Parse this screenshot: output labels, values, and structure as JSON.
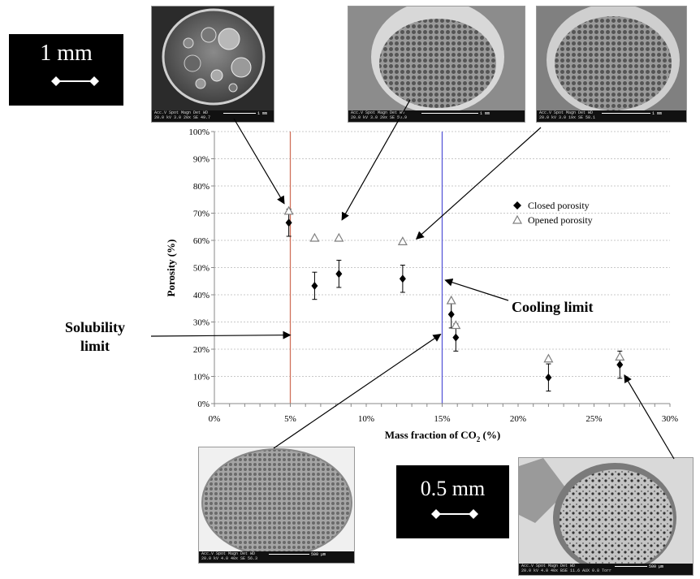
{
  "scale_bars": {
    "large": "1 mm",
    "small": "0.5 mm"
  },
  "micrographs": [
    {
      "id": "m1",
      "footer": [
        "Acc.V  Spot Magn   Det  WD",
        "20.0 kV 3.0  20x    SE  49.7"
      ],
      "scale": "1 mm"
    },
    {
      "id": "m2",
      "footer": [
        "Acc.V  Spot Magn   Det  WD",
        "20.0 kV 3.0  20x    SE  50.9"
      ],
      "scale": "1 mm"
    },
    {
      "id": "m3",
      "footer": [
        "Acc.V  Spot Magn   Det  WD",
        "20.0 kV 3.0  19x    SE  58.1"
      ],
      "scale": "1 mm"
    },
    {
      "id": "m4",
      "footer": [
        "Acc.V  Spot Magn   Det  WD",
        "20.0 kV 4.0  40x    SE  56.3"
      ],
      "scale": "500 µm"
    },
    {
      "id": "m5",
      "footer": [
        "Acc.V  Spot Magn   Det  WD",
        "20.0 kV 4.0  40x    BSE 11.6  AUX 0.8 Torr"
      ],
      "scale": "500 µm"
    }
  ],
  "annotations": {
    "solubility": [
      "Solubility",
      "limit"
    ],
    "cooling": "Cooling limit"
  },
  "chart_data": {
    "type": "scatter",
    "xlabel_main": "Mass fraction of CO",
    "xlabel_sub": "2",
    "xlabel_end": " (%)",
    "ylabel": "Porosity (%)",
    "xlim": [
      0,
      30
    ],
    "ylim": [
      0,
      100
    ],
    "x_ticks": [
      0,
      5,
      10,
      15,
      20,
      25,
      30
    ],
    "x_tick_labels": [
      "0%",
      "5%",
      "10%",
      "15%",
      "20%",
      "25%",
      "30%"
    ],
    "y_ticks": [
      0,
      10,
      20,
      30,
      40,
      50,
      60,
      70,
      80,
      90,
      100
    ],
    "y_tick_labels": [
      "0%",
      "10%",
      "20%",
      "30%",
      "40%",
      "50%",
      "60%",
      "70%",
      "80%",
      "90%",
      "100%"
    ],
    "legend_position": "right",
    "vertical_lines": [
      {
        "x": 5,
        "color": "#d0705a"
      },
      {
        "x": 15,
        "color": "#5a5ad8"
      }
    ],
    "series": [
      {
        "name": "Closed porosity",
        "marker": "diamond",
        "color": "#000000",
        "points": [
          {
            "x": 4.9,
            "y": 66.5,
            "err": 5
          },
          {
            "x": 6.6,
            "y": 43.3,
            "err": 5
          },
          {
            "x": 8.2,
            "y": 47.7,
            "err": 5
          },
          {
            "x": 12.4,
            "y": 45.9,
            "err": 5
          },
          {
            "x": 15.6,
            "y": 32.8,
            "err": 5
          },
          {
            "x": 15.9,
            "y": 24.3,
            "err": 5
          },
          {
            "x": 22.0,
            "y": 9.6,
            "err": 5
          },
          {
            "x": 26.7,
            "y": 14.3,
            "err": 5
          }
        ]
      },
      {
        "name": "Opened porosity",
        "marker": "triangle",
        "color": "#7f7f7f",
        "points": [
          {
            "x": 4.9,
            "y": 70.8
          },
          {
            "x": 6.6,
            "y": 60.9
          },
          {
            "x": 8.2,
            "y": 60.9
          },
          {
            "x": 12.4,
            "y": 59.6
          },
          {
            "x": 15.6,
            "y": 37.9
          },
          {
            "x": 15.9,
            "y": 28.8
          },
          {
            "x": 22.0,
            "y": 16.5
          },
          {
            "x": 26.7,
            "y": 17.2
          }
        ]
      }
    ]
  }
}
